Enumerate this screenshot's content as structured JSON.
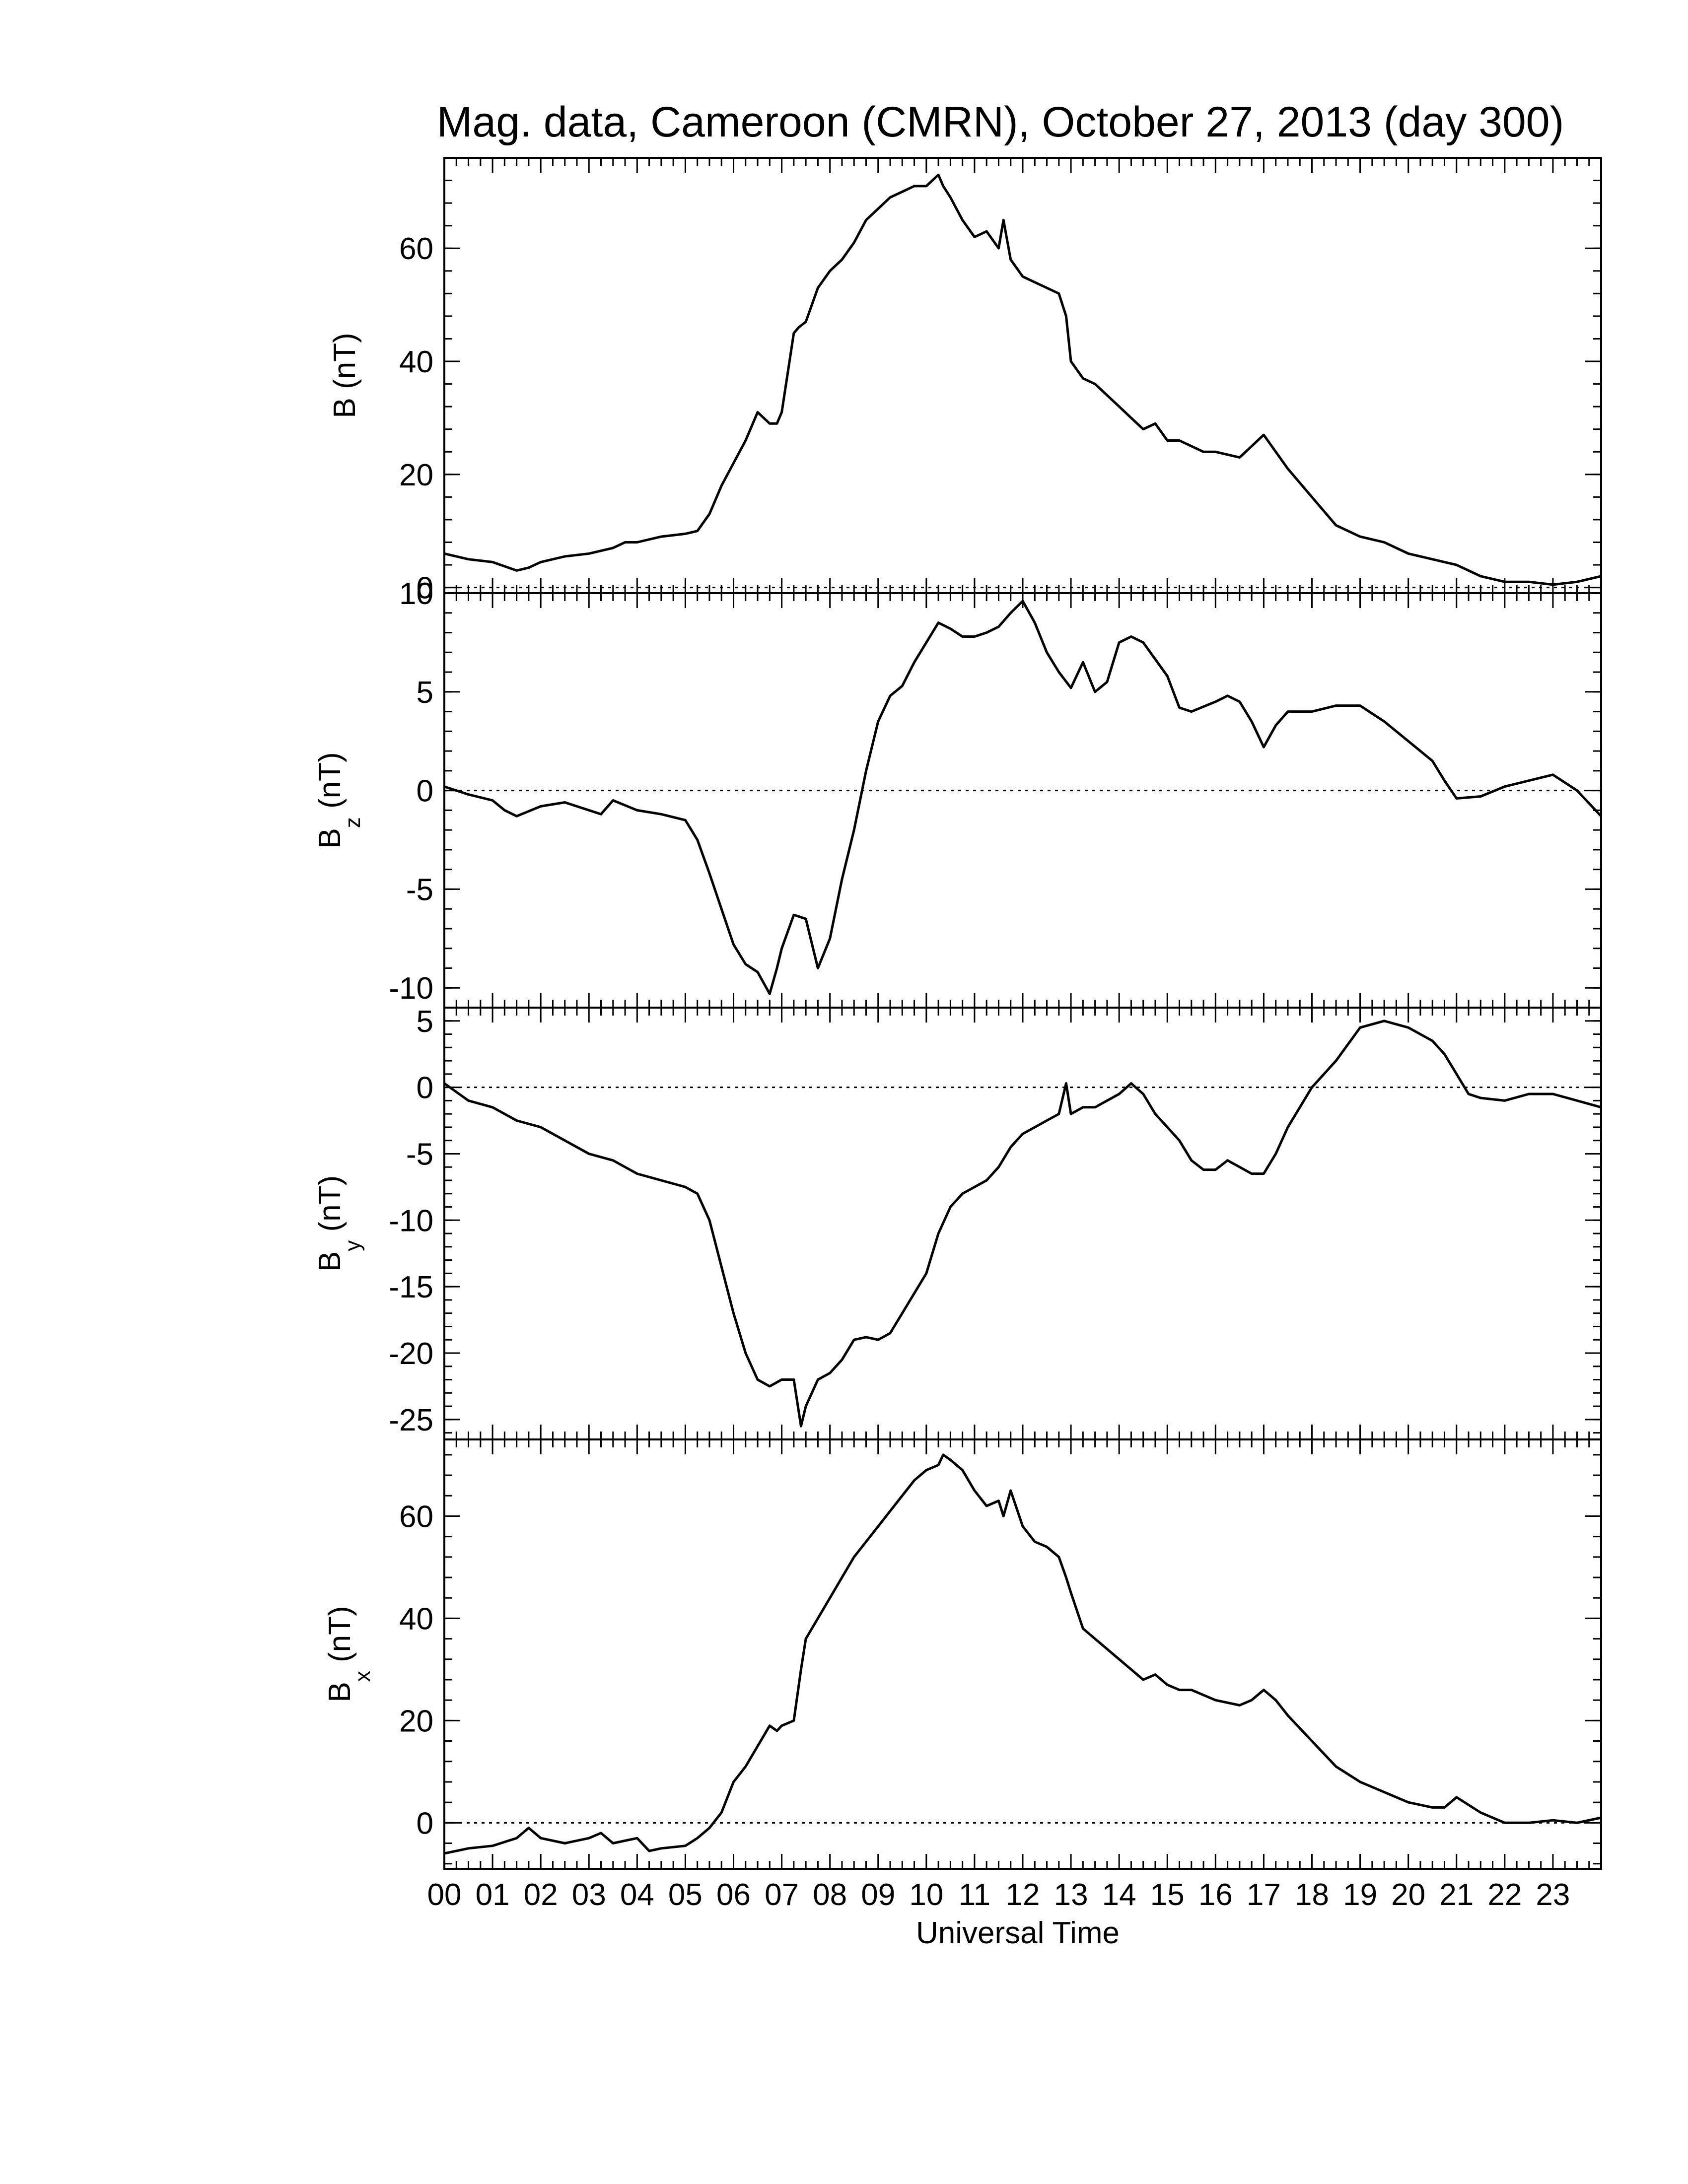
{
  "chart_data": {
    "type": "line",
    "title": "Mag. data, Cameroon (CMRN), October 27, 2013 (day 300)",
    "xlabel": "Universal Time",
    "xlim": [
      0,
      24
    ],
    "x_ticks": [
      "00",
      "01",
      "02",
      "03",
      "04",
      "05",
      "06",
      "07",
      "08",
      "09",
      "10",
      "11",
      "12",
      "13",
      "14",
      "15",
      "16",
      "17",
      "18",
      "19",
      "20",
      "21",
      "22",
      "23"
    ],
    "zero_line": "dotted",
    "panels": [
      {
        "id": "B",
        "ylabel": {
          "main": "B",
          "sub": "",
          "unit": " (nT)"
        },
        "ylim": [
          -1,
          76
        ],
        "yticks": [
          0,
          20,
          40,
          60
        ],
        "x": [
          0,
          0.5,
          1,
          1.5,
          1.75,
          2,
          2.5,
          3,
          3.5,
          3.75,
          4,
          4.5,
          5,
          5.25,
          5.5,
          5.75,
          6,
          6.25,
          6.5,
          6.75,
          6.9,
          7,
          7.25,
          7.35,
          7.5,
          7.75,
          8,
          8.25,
          8.5,
          8.75,
          9,
          9.25,
          9.5,
          9.75,
          10,
          10.25,
          10.35,
          10.5,
          10.75,
          11,
          11.25,
          11.5,
          11.6,
          11.75,
          12,
          12.25,
          12.5,
          12.75,
          12.9,
          13,
          13.25,
          13.5,
          14,
          14.25,
          14.5,
          14.75,
          15,
          15.25,
          15.5,
          15.75,
          16,
          16.5,
          16.75,
          17,
          17.25,
          17.5,
          18,
          18.5,
          19,
          19.5,
          20,
          20.5,
          20.75,
          21,
          21.5,
          22,
          22.5,
          23,
          23.5,
          24
        ],
        "values": [
          6,
          5,
          4.5,
          3,
          3.5,
          4.5,
          5.5,
          6,
          7,
          8,
          8,
          9,
          9.5,
          10,
          13,
          18,
          22,
          26,
          31,
          29,
          29,
          31,
          45,
          46,
          47,
          53,
          56,
          58,
          61,
          65,
          67,
          69,
          70,
          71,
          71,
          73,
          71,
          69,
          65,
          62,
          63,
          60,
          65,
          58,
          55,
          54,
          53,
          52,
          48,
          40,
          37,
          36,
          32,
          30,
          28,
          29,
          26,
          26,
          25,
          24,
          24,
          23,
          25,
          27,
          24,
          21,
          16,
          11,
          9,
          8,
          6,
          5,
          4.5,
          4,
          2,
          1,
          1,
          0.5,
          1,
          2
        ]
      },
      {
        "id": "Bz",
        "ylabel": {
          "main": "B",
          "sub": "z",
          "unit": " (nT)"
        },
        "ylim": [
          -11,
          10
        ],
        "yticks": [
          -10,
          -5,
          0,
          5,
          10
        ],
        "x": [
          0,
          0.5,
          1,
          1.25,
          1.5,
          2,
          2.5,
          3,
          3.25,
          3.5,
          4,
          4.5,
          5,
          5.25,
          5.5,
          5.75,
          6,
          6.25,
          6.5,
          6.75,
          6.9,
          7,
          7.25,
          7.5,
          7.75,
          8,
          8.25,
          8.5,
          8.75,
          9,
          9.25,
          9.5,
          9.75,
          10,
          10.25,
          10.5,
          10.75,
          11,
          11.25,
          11.5,
          11.75,
          12,
          12.25,
          12.5,
          12.75,
          13,
          13.25,
          13.5,
          13.75,
          14,
          14.25,
          14.5,
          15,
          15.25,
          15.5,
          16,
          16.25,
          16.5,
          16.75,
          17,
          17.25,
          17.5,
          18,
          18.5,
          19,
          19.5,
          20,
          20.5,
          20.75,
          21,
          21.5,
          22,
          22.5,
          23,
          23.5,
          24
        ],
        "values": [
          0.2,
          -0.2,
          -0.5,
          -1,
          -1.3,
          -0.8,
          -0.6,
          -1,
          -1.2,
          -0.5,
          -1,
          -1.2,
          -1.5,
          -2.5,
          -4.2,
          -6,
          -7.8,
          -8.8,
          -9.2,
          -10.3,
          -9,
          -8,
          -6.3,
          -6.5,
          -9,
          -7.5,
          -4.5,
          -2,
          1,
          3.5,
          4.8,
          5.3,
          6.5,
          7.5,
          8.5,
          8.2,
          7.8,
          7.8,
          8,
          8.3,
          9,
          9.6,
          8.5,
          7,
          6,
          5.2,
          6.5,
          5,
          5.5,
          7.5,
          7.8,
          7.5,
          5.8,
          4.2,
          4,
          4.5,
          4.8,
          4.5,
          3.5,
          2.2,
          3.3,
          4,
          4,
          4.3,
          4.3,
          3.5,
          2.5,
          1.5,
          0.5,
          -0.4,
          -0.3,
          0.2,
          0.5,
          0.8,
          0,
          -1.3
        ]
      },
      {
        "id": "By",
        "ylabel": {
          "main": "B",
          "sub": "y",
          "unit": " (nT)"
        },
        "ylim": [
          -26.5,
          6
        ],
        "yticks": [
          -25,
          -20,
          -15,
          -10,
          -5,
          0,
          5
        ],
        "x": [
          0,
          0.5,
          1,
          1.5,
          2,
          2.5,
          3,
          3.5,
          4,
          4.5,
          5,
          5.25,
          5.5,
          5.75,
          6,
          6.25,
          6.5,
          6.75,
          7,
          7.25,
          7.4,
          7.5,
          7.75,
          8,
          8.25,
          8.5,
          8.75,
          9,
          9.25,
          9.5,
          9.75,
          10,
          10.25,
          10.5,
          10.75,
          11,
          11.25,
          11.5,
          11.75,
          12,
          12.25,
          12.5,
          12.75,
          12.9,
          13,
          13.25,
          13.5,
          14,
          14.25,
          14.5,
          14.75,
          15,
          15.25,
          15.5,
          15.75,
          16,
          16.25,
          16.5,
          16.75,
          17,
          17.25,
          17.5,
          17.75,
          18,
          18.5,
          19,
          19.5,
          20,
          20.5,
          20.75,
          21,
          21.25,
          21.5,
          22,
          22.5,
          23,
          23.5,
          24
        ],
        "values": [
          0.3,
          -1,
          -1.5,
          -2.5,
          -3,
          -4,
          -5,
          -5.5,
          -6.5,
          -7,
          -7.5,
          -8,
          -10,
          -13.5,
          -17,
          -20,
          -22,
          -22.5,
          -22,
          -22,
          -25.5,
          -24,
          -22,
          -21.5,
          -20.5,
          -19,
          -18.8,
          -19,
          -18.5,
          -17,
          -15.5,
          -14,
          -11,
          -9,
          -8,
          -7.5,
          -7,
          -6,
          -4.5,
          -3.5,
          -3,
          -2.5,
          -2,
          0.3,
          -2,
          -1.5,
          -1.5,
          -0.5,
          0.3,
          -0.5,
          -2,
          -3,
          -4,
          -5.5,
          -6.2,
          -6.2,
          -5.5,
          -6,
          -6.5,
          -6.5,
          -5,
          -3,
          -1.5,
          0,
          2,
          4.5,
          5,
          4.5,
          3.5,
          2.5,
          1,
          -0.5,
          -0.8,
          -1,
          -0.5,
          -0.5,
          -1,
          -1.5
        ]
      },
      {
        "id": "Bx",
        "ylabel": {
          "main": "B",
          "sub": "x",
          "unit": " (nT)"
        },
        "ylim": [
          -9,
          75
        ],
        "yticks": [
          0,
          20,
          40,
          60
        ],
        "x": [
          0,
          0.5,
          1,
          1.5,
          1.75,
          2,
          2.5,
          3,
          3.25,
          3.5,
          4,
          4.25,
          4.5,
          5,
          5.25,
          5.5,
          5.75,
          6,
          6.25,
          6.5,
          6.75,
          6.9,
          7,
          7.25,
          7.4,
          7.5,
          7.75,
          8,
          8.25,
          8.5,
          8.75,
          9,
          9.25,
          9.5,
          9.75,
          10,
          10.25,
          10.35,
          10.5,
          10.75,
          11,
          11.25,
          11.5,
          11.6,
          11.75,
          12,
          12.25,
          12.5,
          12.75,
          12.9,
          13,
          13.25,
          13.5,
          14,
          14.25,
          14.5,
          14.75,
          15,
          15.25,
          15.5,
          15.75,
          16,
          16.5,
          16.75,
          17,
          17.25,
          17.5,
          18,
          18.5,
          19,
          19.5,
          20,
          20.5,
          20.75,
          21,
          21.5,
          22,
          22.5,
          23,
          23.5,
          24
        ],
        "values": [
          -6,
          -5,
          -4.5,
          -3,
          -1,
          -3,
          -4,
          -3,
          -2,
          -4,
          -3,
          -5.5,
          -5,
          -4.5,
          -3,
          -1,
          2,
          8,
          11,
          15,
          19,
          18,
          19,
          20,
          30,
          36,
          40,
          44,
          48,
          52,
          55,
          58,
          61,
          64,
          67,
          69,
          70,
          72,
          71,
          69,
          65,
          62,
          63,
          60,
          65,
          58,
          55,
          54,
          52,
          48,
          45,
          38,
          36,
          32,
          30,
          28,
          29,
          27,
          26,
          26,
          25,
          24,
          23,
          24,
          26,
          24,
          21,
          16,
          11,
          8,
          6,
          4,
          3,
          3,
          5,
          2,
          0,
          0,
          0.5,
          0,
          1
        ]
      }
    ]
  }
}
